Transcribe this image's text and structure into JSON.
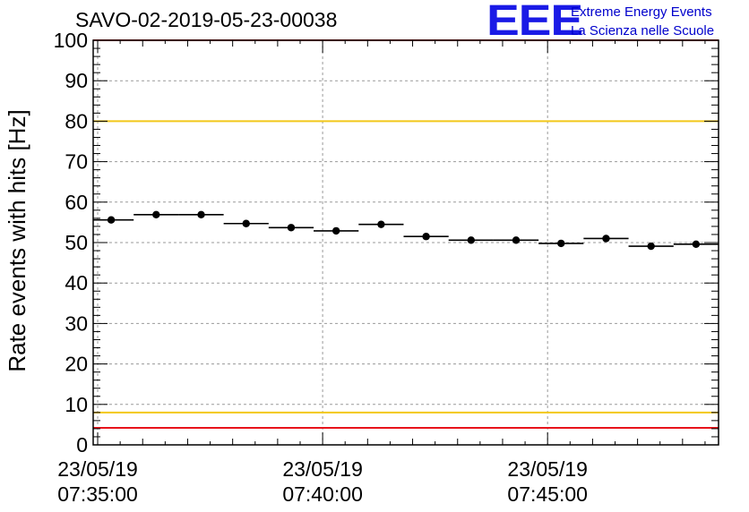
{
  "chart_data": {
    "type": "scatter",
    "title": "SAVO-02-2019-05-23-00038",
    "xlabel": "",
    "ylabel": "Rate events with hits [Hz]",
    "x_unit": "minutes since 07:35:00",
    "xlim": [
      -0.1,
      13.8
    ],
    "ylim": [
      0,
      100
    ],
    "yticks": [
      0,
      10,
      20,
      30,
      40,
      50,
      60,
      70,
      80,
      90,
      100
    ],
    "xticks": [
      {
        "x": 0,
        "date": "23/05/19",
        "time": "07:35:00"
      },
      {
        "x": 5,
        "date": "23/05/19",
        "time": "07:40:00"
      },
      {
        "x": 10,
        "date": "23/05/19",
        "time": "07:45:00"
      }
    ],
    "grid": true,
    "points": [
      {
        "x": 0.3,
        "y": 55.6,
        "xerr": 0.5
      },
      {
        "x": 1.3,
        "y": 56.9,
        "xerr": 0.5
      },
      {
        "x": 2.3,
        "y": 56.9,
        "xerr": 0.5
      },
      {
        "x": 3.3,
        "y": 54.7,
        "xerr": 0.5
      },
      {
        "x": 4.3,
        "y": 53.7,
        "xerr": 0.5
      },
      {
        "x": 5.3,
        "y": 52.9,
        "xerr": 0.5
      },
      {
        "x": 6.3,
        "y": 54.5,
        "xerr": 0.5
      },
      {
        "x": 7.3,
        "y": 51.5,
        "xerr": 0.5
      },
      {
        "x": 8.3,
        "y": 50.6,
        "xerr": 0.5
      },
      {
        "x": 9.3,
        "y": 50.6,
        "xerr": 0.5
      },
      {
        "x": 10.3,
        "y": 49.8,
        "xerr": 0.5
      },
      {
        "x": 11.3,
        "y": 51.0,
        "xerr": 0.5
      },
      {
        "x": 12.3,
        "y": 49.1,
        "xerr": 0.5
      },
      {
        "x": 13.3,
        "y": 49.6,
        "xerr": 0.5
      }
    ],
    "reference_lines": [
      {
        "y": 100,
        "color": "#e8141b"
      },
      {
        "y": 80,
        "color": "#f2c81a"
      },
      {
        "y": 8,
        "color": "#f2c81a"
      },
      {
        "y": 4.2,
        "color": "#e8141b"
      }
    ]
  },
  "logo": {
    "text": "EEE",
    "line1": "Extreme Energy Events",
    "line2": "La Scienza nelle Scuole",
    "color": "#1a1ae6"
  }
}
